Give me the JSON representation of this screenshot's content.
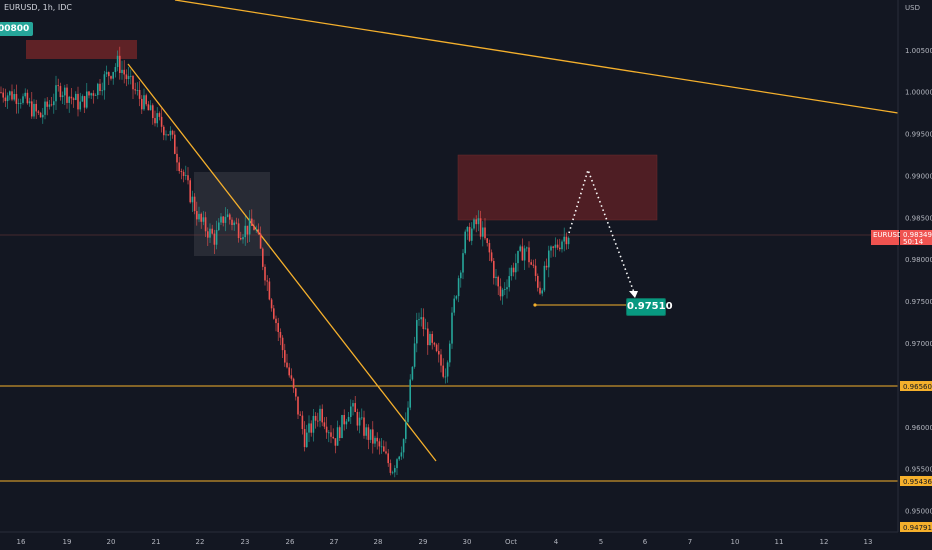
{
  "header": {
    "ticker": "EURUSD, 1h, IDC",
    "price_badge": "00800",
    "currency": "USD"
  },
  "target_label": "0.97510",
  "current_price": {
    "symbol": "EURUSD",
    "value": "0.98349",
    "countdown": "50:14"
  },
  "levels": [
    {
      "value": "0.96560"
    },
    {
      "value": "0.95436"
    },
    {
      "value": "0.94791"
    }
  ],
  "chart_data": {
    "type": "candlestick",
    "y_axis_ticks": [
      "1.00500",
      "1.00000",
      "0.99500",
      "0.99000",
      "0.98500",
      "0.98000",
      "0.97500",
      "0.97000",
      "0.96500",
      "0.96000",
      "0.95500",
      "0.95000"
    ],
    "x_axis_ticks": [
      "16",
      "19",
      "20",
      "21",
      "22",
      "23",
      "26",
      "27",
      "28",
      "29",
      "30",
      "Oct",
      "4",
      "5",
      "6",
      "7",
      "10",
      "11",
      "12",
      "13"
    ],
    "ylim": [
      0.9475,
      1.011
    ],
    "grid": false,
    "colors": {
      "up": "#26a69a",
      "down": "#ef5350",
      "trendline": "#f5b02c",
      "zone": "#6d2427",
      "consolidation": "#3a3d46",
      "background": "#131722"
    },
    "ohlc_waypoints": [
      [
        0,
        1.0
      ],
      [
        20,
        0.9995
      ],
      [
        40,
        0.997
      ],
      [
        60,
        1.0005
      ],
      [
        80,
        0.9985
      ],
      [
        100,
        1.001
      ],
      [
        118,
        1.0035
      ],
      [
        130,
        1.001
      ],
      [
        150,
        0.9975
      ],
      [
        170,
        0.995
      ],
      [
        185,
        0.9895
      ],
      [
        200,
        0.9845
      ],
      [
        215,
        0.9825
      ],
      [
        225,
        0.9855
      ],
      [
        240,
        0.9835
      ],
      [
        255,
        0.984
      ],
      [
        265,
        0.9785
      ],
      [
        280,
        0.9705
      ],
      [
        295,
        0.9635
      ],
      [
        305,
        0.9585
      ],
      [
        320,
        0.962
      ],
      [
        335,
        0.9585
      ],
      [
        350,
        0.9625
      ],
      [
        365,
        0.9595
      ],
      [
        380,
        0.9575
      ],
      [
        392,
        0.955
      ],
      [
        405,
        0.959
      ],
      [
        418,
        0.9735
      ],
      [
        432,
        0.9695
      ],
      [
        445,
        0.9665
      ],
      [
        455,
        0.9755
      ],
      [
        465,
        0.9825
      ],
      [
        478,
        0.9845
      ],
      [
        490,
        0.9805
      ],
      [
        500,
        0.9755
      ],
      [
        510,
        0.9785
      ],
      [
        525,
        0.9815
      ],
      [
        540,
        0.9765
      ],
      [
        550,
        0.9805
      ],
      [
        562,
        0.9825
      ],
      [
        572,
        0.9835
      ]
    ]
  }
}
